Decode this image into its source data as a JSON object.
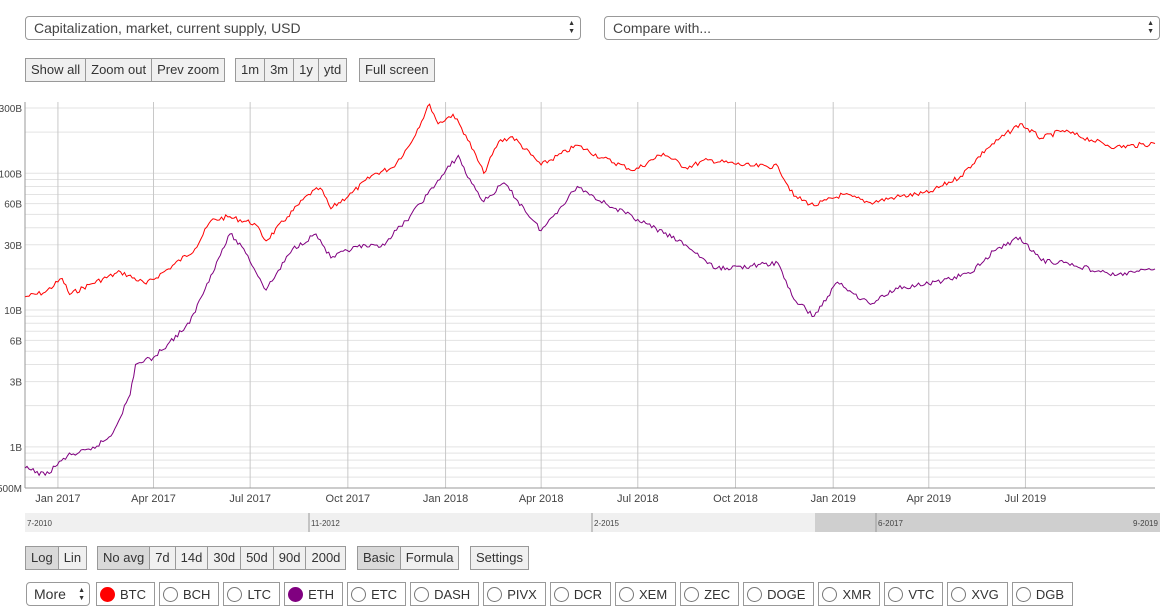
{
  "top": {
    "metric_select": "Capitalization, market, current supply, USD",
    "compare_select": "Compare with..."
  },
  "toolbar": {
    "zoom_buttons": [
      "Show all",
      "Zoom out",
      "Prev zoom"
    ],
    "range_buttons": [
      "1m",
      "3m",
      "1y",
      "ytd"
    ],
    "fullscreen": "Full screen"
  },
  "bottom": {
    "scale_buttons": [
      "Log",
      "Lin"
    ],
    "avg_buttons": [
      "No avg",
      "7d",
      "14d",
      "30d",
      "50d",
      "90d",
      "200d"
    ],
    "mode_buttons": [
      "Basic",
      "Formula"
    ],
    "settings": "Settings",
    "more": "More",
    "coins": [
      {
        "label": "BTC",
        "selected": true,
        "color": "#ff0000"
      },
      {
        "label": "BCH",
        "selected": false
      },
      {
        "label": "LTC",
        "selected": false
      },
      {
        "label": "ETH",
        "selected": true,
        "color": "#800080"
      },
      {
        "label": "ETC",
        "selected": false
      },
      {
        "label": "DASH",
        "selected": false
      },
      {
        "label": "PIVX",
        "selected": false
      },
      {
        "label": "DCR",
        "selected": false
      },
      {
        "label": "XEM",
        "selected": false
      },
      {
        "label": "ZEC",
        "selected": false
      },
      {
        "label": "DOGE",
        "selected": false
      },
      {
        "label": "XMR",
        "selected": false
      },
      {
        "label": "VTC",
        "selected": false
      },
      {
        "label": "XVG",
        "selected": false
      },
      {
        "label": "DGB",
        "selected": false
      }
    ]
  },
  "navigator": {
    "labels": [
      "7-2010",
      "11-2012",
      "2-2015",
      "6-2017",
      "9-2019"
    ]
  },
  "chart_data": {
    "type": "line",
    "scale": "log",
    "title": "",
    "xlabel": "",
    "ylabel": "",
    "x_range": [
      "2016-12-01",
      "2019-10-31"
    ],
    "ylim": [
      500000000,
      300000000000
    ],
    "y_ticks": [
      {
        "label": "300B",
        "value": 300000000000
      },
      {
        "label": "100B",
        "value": 100000000000
      },
      {
        "label": "60B",
        "value": 60000000000
      },
      {
        "label": "30B",
        "value": 30000000000
      },
      {
        "label": "10B",
        "value": 10000000000
      },
      {
        "label": "6B",
        "value": 6000000000
      },
      {
        "label": "3B",
        "value": 3000000000
      },
      {
        "label": "1B",
        "value": 1000000000
      },
      {
        "label": "500M",
        "value": 500000000
      }
    ],
    "x_ticks": [
      {
        "label": "Jan 2017",
        "date": "2017-01-01"
      },
      {
        "label": "Apr 2017",
        "date": "2017-04-01"
      },
      {
        "label": "Jul 2017",
        "date": "2017-07-01"
      },
      {
        "label": "Oct 2017",
        "date": "2017-10-01"
      },
      {
        "label": "Jan 2018",
        "date": "2018-01-01"
      },
      {
        "label": "Apr 2018",
        "date": "2018-04-01"
      },
      {
        "label": "Jul 2018",
        "date": "2018-07-01"
      },
      {
        "label": "Oct 2018",
        "date": "2018-10-01"
      },
      {
        "label": "Jan 2019",
        "date": "2019-01-01"
      },
      {
        "label": "Apr 2019",
        "date": "2019-04-01"
      },
      {
        "label": "Jul 2019",
        "date": "2019-07-01"
      }
    ],
    "grid": true,
    "series": [
      {
        "name": "BTC",
        "color": "#ff0000",
        "points": [
          [
            "2016-12-01",
            12500000000
          ],
          [
            "2016-12-20",
            13500000000
          ],
          [
            "2017-01-05",
            17000000000
          ],
          [
            "2017-01-12",
            13000000000
          ],
          [
            "2017-02-01",
            15500000000
          ],
          [
            "2017-03-01",
            19000000000
          ],
          [
            "2017-03-25",
            15500000000
          ],
          [
            "2017-04-15",
            20000000000
          ],
          [
            "2017-05-10",
            28000000000
          ],
          [
            "2017-05-25",
            45000000000
          ],
          [
            "2017-06-10",
            48000000000
          ],
          [
            "2017-07-05",
            43000000000
          ],
          [
            "2017-07-16",
            32000000000
          ],
          [
            "2017-08-05",
            48000000000
          ],
          [
            "2017-08-25",
            70000000000
          ],
          [
            "2017-09-05",
            78000000000
          ],
          [
            "2017-09-15",
            55000000000
          ],
          [
            "2017-10-05",
            72000000000
          ],
          [
            "2017-10-25",
            98000000000
          ],
          [
            "2017-11-12",
            110000000000
          ],
          [
            "2017-11-28",
            160000000000
          ],
          [
            "2017-12-17",
            320000000000
          ],
          [
            "2017-12-25",
            230000000000
          ],
          [
            "2018-01-08",
            270000000000
          ],
          [
            "2018-01-20",
            190000000000
          ],
          [
            "2018-02-06",
            100000000000
          ],
          [
            "2018-02-20",
            170000000000
          ],
          [
            "2018-03-05",
            185000000000
          ],
          [
            "2018-04-01",
            115000000000
          ],
          [
            "2018-05-05",
            160000000000
          ],
          [
            "2018-05-28",
            130000000000
          ],
          [
            "2018-06-28",
            105000000000
          ],
          [
            "2018-07-25",
            140000000000
          ],
          [
            "2018-08-15",
            110000000000
          ],
          [
            "2018-09-05",
            125000000000
          ],
          [
            "2018-10-15",
            113000000000
          ],
          [
            "2018-11-10",
            112000000000
          ],
          [
            "2018-11-25",
            68000000000
          ],
          [
            "2018-12-14",
            58000000000
          ],
          [
            "2019-01-10",
            70000000000
          ],
          [
            "2019-02-05",
            61000000000
          ],
          [
            "2019-03-01",
            67000000000
          ],
          [
            "2019-04-01",
            72000000000
          ],
          [
            "2019-05-01",
            95000000000
          ],
          [
            "2019-05-25",
            150000000000
          ],
          [
            "2019-06-26",
            230000000000
          ],
          [
            "2019-07-16",
            180000000000
          ],
          [
            "2019-08-05",
            205000000000
          ],
          [
            "2019-09-01",
            175000000000
          ],
          [
            "2019-09-24",
            155000000000
          ],
          [
            "2019-10-31",
            165000000000
          ]
        ]
      },
      {
        "name": "ETH",
        "color": "#800080",
        "points": [
          [
            "2016-12-01",
            700000000
          ],
          [
            "2016-12-20",
            620000000
          ],
          [
            "2017-01-10",
            860000000
          ],
          [
            "2017-02-01",
            950000000
          ],
          [
            "2017-02-20",
            1200000000
          ],
          [
            "2017-03-10",
            2400000000
          ],
          [
            "2017-03-15",
            4000000000
          ],
          [
            "2017-04-01",
            4500000000
          ],
          [
            "2017-05-05",
            8000000000
          ],
          [
            "2017-05-25",
            18000000000
          ],
          [
            "2017-06-12",
            36000000000
          ],
          [
            "2017-06-25",
            28000000000
          ],
          [
            "2017-07-16",
            14000000000
          ],
          [
            "2017-08-10",
            28000000000
          ],
          [
            "2017-09-01",
            36000000000
          ],
          [
            "2017-09-15",
            24000000000
          ],
          [
            "2017-10-10",
            29000000000
          ],
          [
            "2017-11-01",
            29000000000
          ],
          [
            "2017-11-25",
            45000000000
          ],
          [
            "2017-12-15",
            70000000000
          ],
          [
            "2018-01-13",
            135000000000
          ],
          [
            "2018-01-20",
            100000000000
          ],
          [
            "2018-02-06",
            62000000000
          ],
          [
            "2018-02-25",
            85000000000
          ],
          [
            "2018-04-01",
            38000000000
          ],
          [
            "2018-05-05",
            80000000000
          ],
          [
            "2018-06-01",
            60000000000
          ],
          [
            "2018-07-01",
            46000000000
          ],
          [
            "2018-08-15",
            30000000000
          ],
          [
            "2018-09-12",
            20000000000
          ],
          [
            "2018-10-15",
            21000000000
          ],
          [
            "2018-11-10",
            22000000000
          ],
          [
            "2018-11-25",
            12000000000
          ],
          [
            "2018-12-14",
            9000000000
          ],
          [
            "2019-01-05",
            16000000000
          ],
          [
            "2019-02-05",
            11000000000
          ],
          [
            "2019-03-01",
            14500000000
          ],
          [
            "2019-04-01",
            15500000000
          ],
          [
            "2019-05-10",
            18500000000
          ],
          [
            "2019-06-01",
            27000000000
          ],
          [
            "2019-06-26",
            34000000000
          ],
          [
            "2019-07-16",
            23000000000
          ],
          [
            "2019-08-10",
            22000000000
          ],
          [
            "2019-09-10",
            19000000000
          ],
          [
            "2019-09-25",
            18000000000
          ],
          [
            "2019-10-31",
            20000000000
          ]
        ]
      }
    ]
  }
}
